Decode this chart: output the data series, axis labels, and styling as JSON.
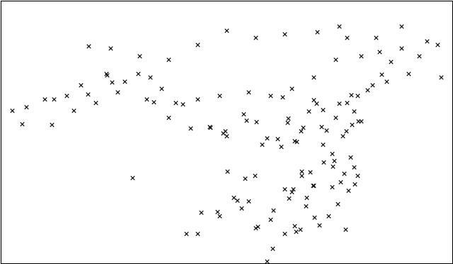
{
  "title": "",
  "background_color": "white",
  "map_extent": [
    73,
    135,
    18,
    54
  ],
  "marker_style": "x",
  "marker_color": "black",
  "marker_size": 4,
  "marker_linewidth": 0.8,
  "border_color": "black",
  "border_linewidth": 0.8,
  "cities_lon_lat": [
    [
      87.6,
      43.8
    ],
    [
      91.1,
      29.7
    ],
    [
      80.3,
      40.5
    ],
    [
      75.9,
      37.1
    ],
    [
      84.9,
      41.2
    ],
    [
      88.2,
      42.9
    ],
    [
      116.4,
      39.9
    ],
    [
      121.5,
      31.2
    ],
    [
      113.3,
      23.1
    ],
    [
      104.1,
      30.6
    ],
    [
      114.3,
      30.6
    ],
    [
      120.2,
      30.3
    ],
    [
      106.5,
      29.6
    ],
    [
      117.0,
      36.7
    ],
    [
      118.8,
      32.1
    ],
    [
      126.6,
      45.7
    ],
    [
      123.4,
      41.8
    ],
    [
      112.5,
      37.9
    ],
    [
      108.9,
      34.3
    ],
    [
      113.6,
      34.7
    ],
    [
      117.3,
      31.9
    ],
    [
      119.5,
      39.9
    ],
    [
      121.1,
      41.1
    ],
    [
      125.3,
      43.9
    ],
    [
      109.5,
      18.3
    ],
    [
      110.3,
      20.0
    ],
    [
      103.8,
      36.1
    ],
    [
      102.7,
      25.1
    ],
    [
      111.7,
      40.8
    ],
    [
      106.3,
      38.5
    ],
    [
      116.7,
      23.2
    ],
    [
      114.1,
      22.6
    ],
    [
      120.7,
      28.0
    ],
    [
      117.2,
      39.1
    ],
    [
      115.9,
      28.7
    ],
    [
      119.3,
      26.1
    ],
    [
      112.0,
      28.2
    ],
    [
      107.9,
      30.0
    ],
    [
      105.0,
      27.0
    ],
    [
      100.5,
      25.0
    ],
    [
      98.5,
      22.0
    ],
    [
      91.8,
      44.0
    ],
    [
      94.0,
      40.1
    ],
    [
      96.0,
      38.0
    ],
    [
      101.8,
      36.6
    ],
    [
      104.0,
      35.5
    ],
    [
      111.0,
      35.1
    ],
    [
      116.0,
      28.7
    ],
    [
      113.0,
      27.8
    ],
    [
      115.0,
      27.0
    ],
    [
      118.0,
      24.5
    ],
    [
      120.3,
      22.6
    ],
    [
      110.0,
      24.0
    ],
    [
      108.0,
      22.8
    ],
    [
      106.0,
      25.5
    ],
    [
      103.0,
      24.5
    ],
    [
      100.0,
      22.0
    ],
    [
      115.3,
      38.9
    ],
    [
      117.7,
      36.2
    ],
    [
      120.4,
      36.1
    ],
    [
      121.5,
      38.9
    ],
    [
      122.1,
      37.5
    ],
    [
      114.5,
      36.6
    ],
    [
      113.1,
      28.2
    ],
    [
      112.6,
      26.9
    ],
    [
      114.9,
      25.8
    ],
    [
      116.1,
      24.3
    ],
    [
      113.5,
      22.3
    ],
    [
      114.3,
      30.0
    ],
    [
      115.5,
      30.5
    ],
    [
      116.0,
      40.4
    ],
    [
      117.2,
      34.3
    ],
    [
      118.6,
      31.3
    ],
    [
      121.0,
      32.5
    ],
    [
      122.0,
      30.0
    ],
    [
      105.5,
      26.6
    ],
    [
      107.0,
      26.5
    ],
    [
      108.3,
      23.0
    ],
    [
      110.4,
      25.3
    ],
    [
      112.0,
      22.0
    ],
    [
      118.5,
      28.5
    ],
    [
      119.7,
      29.1
    ],
    [
      121.6,
      28.9
    ],
    [
      113.3,
      34.8
    ],
    [
      114.2,
      36.1
    ],
    [
      112.4,
      37.3
    ],
    [
      111.5,
      34.0
    ],
    [
      109.5,
      35.2
    ],
    [
      108.1,
      37.4
    ],
    [
      106.7,
      37.6
    ],
    [
      103.5,
      35.9
    ],
    [
      101.7,
      36.7
    ],
    [
      99.0,
      36.5
    ],
    [
      98.0,
      39.8
    ],
    [
      95.0,
      42.0
    ],
    [
      93.5,
      43.5
    ],
    [
      90.0,
      43.0
    ],
    [
      87.5,
      44.0
    ],
    [
      84.0,
      42.5
    ],
    [
      82.0,
      41.0
    ],
    [
      79.0,
      40.5
    ],
    [
      76.5,
      39.5
    ],
    [
      74.5,
      39.0
    ],
    [
      80.0,
      37.0
    ],
    [
      83.0,
      39.0
    ],
    [
      86.0,
      40.0
    ],
    [
      89.0,
      41.5
    ],
    [
      93.0,
      40.5
    ],
    [
      97.0,
      40.0
    ],
    [
      100.0,
      40.5
    ],
    [
      103.0,
      41.0
    ],
    [
      107.0,
      41.5
    ],
    [
      110.0,
      41.0
    ],
    [
      113.0,
      42.0
    ],
    [
      116.0,
      43.5
    ],
    [
      119.0,
      46.0
    ],
    [
      122.5,
      46.5
    ],
    [
      125.0,
      47.0
    ],
    [
      128.0,
      47.5
    ],
    [
      130.5,
      46.5
    ],
    [
      133.0,
      48.0
    ],
    [
      129.0,
      44.0
    ],
    [
      126.0,
      43.0
    ],
    [
      124.0,
      42.5
    ],
    [
      122.0,
      41.0
    ],
    [
      120.5,
      40.0
    ],
    [
      119.0,
      38.0
    ],
    [
      118.5,
      33.0
    ],
    [
      120.0,
      35.5
    ],
    [
      121.2,
      37.0
    ],
    [
      122.5,
      37.5
    ],
    [
      85.0,
      47.8
    ],
    [
      88.0,
      47.5
    ],
    [
      92.0,
      46.5
    ],
    [
      96.0,
      46.0
    ],
    [
      100.0,
      48.0
    ],
    [
      104.0,
      50.0
    ],
    [
      108.0,
      49.0
    ],
    [
      112.0,
      49.5
    ],
    [
      116.5,
      49.8
    ],
    [
      120.5,
      49.0
    ],
    [
      124.5,
      49.0
    ],
    [
      128.0,
      50.5
    ],
    [
      131.5,
      48.5
    ],
    [
      119.5,
      50.5
    ],
    [
      133.5,
      43.5
    ]
  ]
}
